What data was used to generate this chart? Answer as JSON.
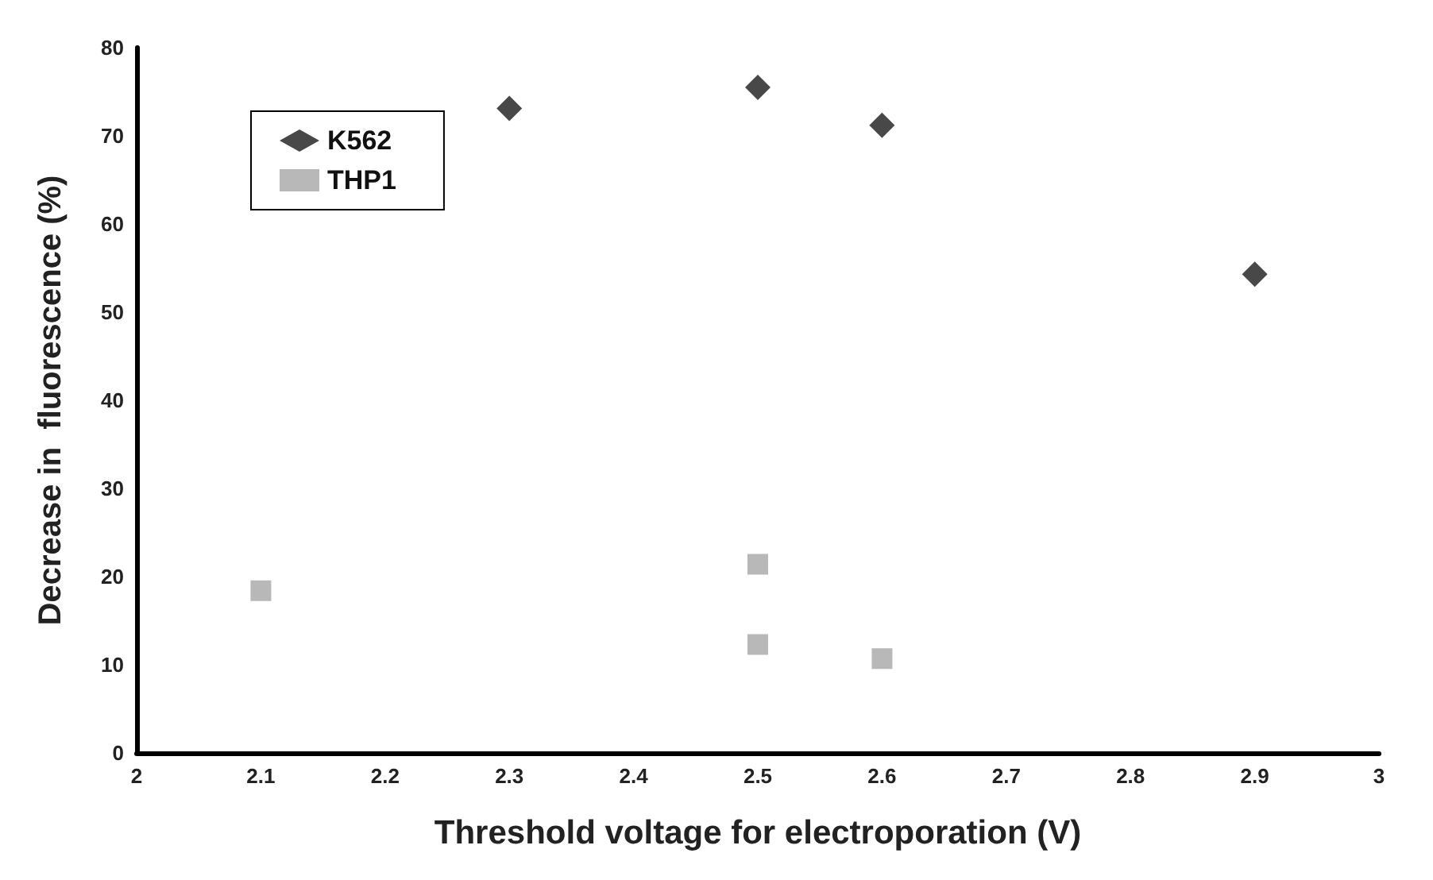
{
  "chart_data": {
    "type": "scatter",
    "xlabel": "Threshold voltage for electroporation (V)",
    "ylabel": "Decrease in  fluorescence (%)",
    "xlim": [
      2,
      3
    ],
    "xticks": [
      2,
      2.1,
      2.2,
      2.3,
      2.4,
      2.5,
      2.6,
      2.7,
      2.8,
      2.9,
      3
    ],
    "ylim": [
      0,
      80
    ],
    "yticks": [
      0,
      10,
      20,
      30,
      40,
      50,
      60,
      70,
      80
    ],
    "grid": false,
    "legend": "top left",
    "series": [
      {
        "name": "K562",
        "color": "#1a1a1a",
        "marker": "diamond",
        "x": [
          2.3,
          2.5,
          2.6,
          2.9
        ],
        "values": [
          73.1,
          75.5,
          71.2,
          54.3
        ]
      },
      {
        "name": "THP1",
        "color": "#a6a6a6",
        "marker": "square",
        "x": [
          2.1,
          2.5,
          2.5,
          2.6
        ],
        "values": [
          18.4,
          21.4,
          12.3,
          10.7
        ]
      }
    ]
  }
}
